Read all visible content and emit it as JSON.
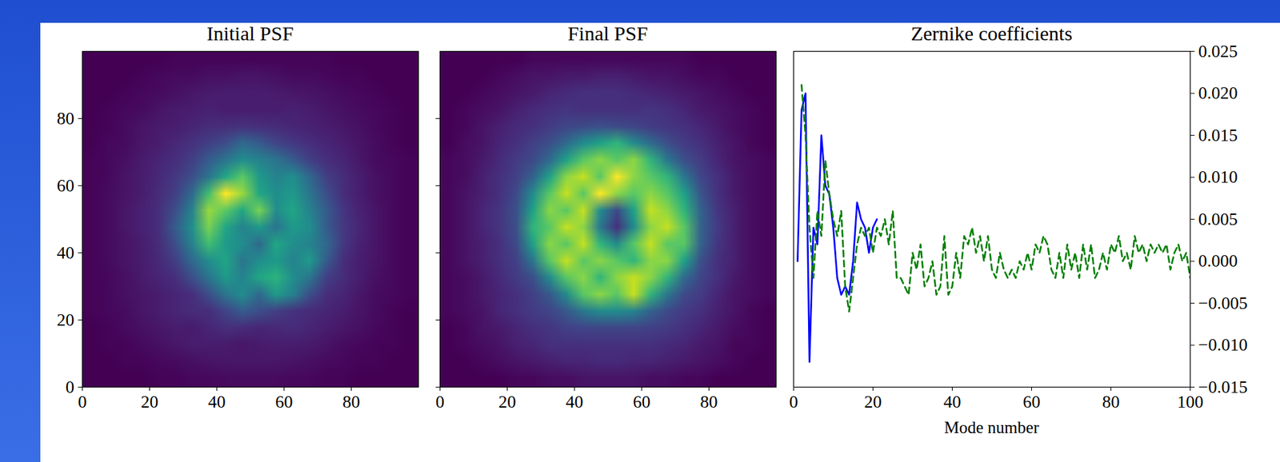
{
  "chart_data": [
    {
      "type": "heatmap",
      "title": "Initial PSF",
      "color": "viridis",
      "xlim": [
        0,
        100
      ],
      "ylim": [
        0,
        100
      ],
      "xticks": [
        0,
        20,
        40,
        60,
        80
      ],
      "yticks": [
        0,
        20,
        40,
        60,
        80
      ],
      "cells": [
        [
          0.02,
          0.02,
          0.02,
          0.02,
          0.03,
          0.03,
          0.04,
          0.04,
          0.05,
          0.05,
          0.05,
          0.05,
          0.04,
          0.04,
          0.03,
          0.03,
          0.02,
          0.02,
          0.02,
          0.02
        ],
        [
          0.02,
          0.02,
          0.03,
          0.03,
          0.04,
          0.05,
          0.06,
          0.07,
          0.08,
          0.08,
          0.08,
          0.08,
          0.07,
          0.06,
          0.05,
          0.04,
          0.03,
          0.03,
          0.02,
          0.02
        ],
        [
          0.02,
          0.03,
          0.03,
          0.05,
          0.06,
          0.08,
          0.1,
          0.1,
          0.09,
          0.08,
          0.09,
          0.1,
          0.1,
          0.09,
          0.07,
          0.05,
          0.04,
          0.03,
          0.03,
          0.02
        ],
        [
          0.02,
          0.03,
          0.05,
          0.06,
          0.08,
          0.1,
          0.09,
          0.12,
          0.15,
          0.14,
          0.12,
          0.13,
          0.14,
          0.12,
          0.1,
          0.08,
          0.06,
          0.04,
          0.03,
          0.02
        ],
        [
          0.03,
          0.04,
          0.05,
          0.08,
          0.1,
          0.12,
          0.14,
          0.15,
          0.22,
          0.3,
          0.25,
          0.2,
          0.16,
          0.14,
          0.12,
          0.1,
          0.07,
          0.05,
          0.03,
          0.02
        ],
        [
          0.03,
          0.04,
          0.06,
          0.08,
          0.1,
          0.12,
          0.15,
          0.25,
          0.4,
          0.5,
          0.35,
          0.55,
          0.45,
          0.25,
          0.15,
          0.12,
          0.08,
          0.05,
          0.04,
          0.03
        ],
        [
          0.03,
          0.04,
          0.06,
          0.09,
          0.12,
          0.15,
          0.25,
          0.4,
          0.55,
          0.45,
          0.6,
          0.65,
          0.5,
          0.4,
          0.2,
          0.14,
          0.1,
          0.06,
          0.04,
          0.03
        ],
        [
          0.03,
          0.05,
          0.07,
          0.1,
          0.13,
          0.2,
          0.35,
          0.5,
          0.6,
          0.4,
          0.5,
          0.55,
          0.45,
          0.55,
          0.3,
          0.15,
          0.1,
          0.07,
          0.04,
          0.03
        ],
        [
          0.03,
          0.05,
          0.07,
          0.1,
          0.14,
          0.25,
          0.45,
          0.7,
          0.55,
          0.5,
          0.35,
          0.6,
          0.5,
          0.45,
          0.35,
          0.18,
          0.11,
          0.07,
          0.04,
          0.03
        ],
        [
          0.03,
          0.05,
          0.08,
          0.11,
          0.15,
          0.3,
          0.5,
          0.8,
          0.6,
          0.45,
          0.55,
          0.4,
          0.55,
          0.5,
          0.3,
          0.18,
          0.12,
          0.07,
          0.04,
          0.03
        ],
        [
          0.03,
          0.05,
          0.08,
          0.11,
          0.15,
          0.25,
          0.45,
          0.85,
          0.75,
          0.6,
          0.8,
          0.5,
          0.6,
          0.45,
          0.3,
          0.17,
          0.11,
          0.07,
          0.04,
          0.03
        ],
        [
          0.03,
          0.05,
          0.07,
          0.1,
          0.14,
          0.2,
          0.35,
          0.7,
          1.0,
          0.85,
          0.6,
          0.5,
          0.55,
          0.4,
          0.25,
          0.15,
          0.1,
          0.06,
          0.04,
          0.03
        ],
        [
          0.03,
          0.04,
          0.07,
          0.1,
          0.13,
          0.18,
          0.25,
          0.4,
          0.6,
          0.75,
          0.55,
          0.45,
          0.5,
          0.35,
          0.2,
          0.14,
          0.1,
          0.06,
          0.04,
          0.03
        ],
        [
          0.03,
          0.04,
          0.06,
          0.09,
          0.12,
          0.15,
          0.2,
          0.3,
          0.4,
          0.5,
          0.45,
          0.4,
          0.3,
          0.2,
          0.15,
          0.12,
          0.08,
          0.05,
          0.04,
          0.03
        ],
        [
          0.02,
          0.04,
          0.05,
          0.08,
          0.1,
          0.13,
          0.16,
          0.2,
          0.25,
          0.35,
          0.3,
          0.22,
          0.18,
          0.15,
          0.12,
          0.1,
          0.07,
          0.05,
          0.03,
          0.02
        ],
        [
          0.02,
          0.03,
          0.05,
          0.07,
          0.09,
          0.1,
          0.12,
          0.14,
          0.15,
          0.16,
          0.15,
          0.14,
          0.12,
          0.11,
          0.1,
          0.08,
          0.06,
          0.04,
          0.03,
          0.02
        ],
        [
          0.02,
          0.03,
          0.04,
          0.05,
          0.07,
          0.09,
          0.1,
          0.11,
          0.1,
          0.1,
          0.1,
          0.1,
          0.11,
          0.1,
          0.08,
          0.06,
          0.05,
          0.04,
          0.03,
          0.02
        ],
        [
          0.02,
          0.02,
          0.03,
          0.04,
          0.05,
          0.06,
          0.08,
          0.09,
          0.1,
          0.1,
          0.1,
          0.09,
          0.08,
          0.07,
          0.06,
          0.05,
          0.04,
          0.03,
          0.02,
          0.02
        ],
        [
          0.02,
          0.02,
          0.02,
          0.03,
          0.04,
          0.05,
          0.05,
          0.06,
          0.06,
          0.07,
          0.07,
          0.06,
          0.05,
          0.05,
          0.04,
          0.03,
          0.03,
          0.02,
          0.02,
          0.02
        ],
        [
          0.02,
          0.02,
          0.02,
          0.02,
          0.02,
          0.03,
          0.03,
          0.03,
          0.03,
          0.03,
          0.03,
          0.03,
          0.03,
          0.03,
          0.03,
          0.02,
          0.02,
          0.02,
          0.02,
          0.02
        ]
      ]
    },
    {
      "type": "heatmap",
      "title": "Final PSF",
      "color": "viridis",
      "tick_labels": "x",
      "xlim": [
        0,
        100
      ],
      "ylim": [
        0,
        100
      ],
      "xticks": [
        0,
        20,
        40,
        60,
        80
      ],
      "yticks": [
        0,
        20,
        40,
        60,
        80
      ],
      "cells": [
        [
          0.02,
          0.02,
          0.02,
          0.02,
          0.03,
          0.03,
          0.04,
          0.04,
          0.05,
          0.05,
          0.05,
          0.05,
          0.04,
          0.04,
          0.03,
          0.03,
          0.02,
          0.02,
          0.02,
          0.02
        ],
        [
          0.02,
          0.02,
          0.03,
          0.04,
          0.05,
          0.06,
          0.07,
          0.08,
          0.08,
          0.09,
          0.09,
          0.08,
          0.08,
          0.07,
          0.06,
          0.05,
          0.04,
          0.03,
          0.02,
          0.02
        ],
        [
          0.02,
          0.03,
          0.04,
          0.05,
          0.07,
          0.08,
          0.1,
          0.1,
          0.1,
          0.1,
          0.1,
          0.1,
          0.1,
          0.09,
          0.08,
          0.06,
          0.05,
          0.03,
          0.03,
          0.02
        ],
        [
          0.02,
          0.03,
          0.05,
          0.06,
          0.08,
          0.1,
          0.11,
          0.13,
          0.14,
          0.14,
          0.14,
          0.14,
          0.13,
          0.12,
          0.1,
          0.08,
          0.06,
          0.04,
          0.03,
          0.02
        ],
        [
          0.03,
          0.04,
          0.05,
          0.08,
          0.1,
          0.12,
          0.14,
          0.18,
          0.25,
          0.3,
          0.3,
          0.28,
          0.2,
          0.15,
          0.12,
          0.1,
          0.07,
          0.05,
          0.03,
          0.02
        ],
        [
          0.03,
          0.04,
          0.06,
          0.08,
          0.1,
          0.13,
          0.18,
          0.3,
          0.45,
          0.5,
          0.45,
          0.55,
          0.4,
          0.25,
          0.15,
          0.12,
          0.08,
          0.05,
          0.04,
          0.03
        ],
        [
          0.03,
          0.04,
          0.06,
          0.09,
          0.12,
          0.16,
          0.3,
          0.45,
          0.5,
          0.4,
          0.5,
          0.55,
          0.5,
          0.4,
          0.22,
          0.14,
          0.1,
          0.06,
          0.04,
          0.03
        ],
        [
          0.03,
          0.05,
          0.07,
          0.1,
          0.13,
          0.25,
          0.45,
          0.55,
          0.45,
          0.5,
          0.45,
          0.4,
          0.5,
          0.5,
          0.35,
          0.16,
          0.1,
          0.07,
          0.04,
          0.03
        ],
        [
          0.03,
          0.05,
          0.07,
          0.1,
          0.15,
          0.35,
          0.5,
          0.45,
          0.55,
          0.4,
          0.3,
          0.45,
          0.55,
          0.45,
          0.45,
          0.2,
          0.11,
          0.07,
          0.04,
          0.03
        ],
        [
          0.03,
          0.05,
          0.08,
          0.11,
          0.16,
          0.4,
          0.45,
          0.55,
          0.5,
          0.25,
          0.1,
          0.3,
          0.5,
          0.55,
          0.45,
          0.2,
          0.12,
          0.07,
          0.04,
          0.03
        ],
        [
          0.03,
          0.05,
          0.08,
          0.11,
          0.16,
          0.35,
          0.5,
          0.45,
          0.55,
          0.3,
          0.15,
          0.35,
          0.55,
          0.5,
          0.4,
          0.2,
          0.11,
          0.07,
          0.04,
          0.03
        ],
        [
          0.03,
          0.05,
          0.07,
          0.1,
          0.15,
          0.3,
          0.45,
          0.55,
          0.45,
          0.6,
          0.5,
          0.45,
          0.5,
          0.45,
          0.35,
          0.17,
          0.1,
          0.06,
          0.04,
          0.03
        ],
        [
          0.03,
          0.04,
          0.07,
          0.1,
          0.13,
          0.2,
          0.35,
          0.5,
          0.55,
          0.45,
          0.6,
          0.5,
          0.45,
          0.4,
          0.25,
          0.14,
          0.1,
          0.06,
          0.04,
          0.03
        ],
        [
          0.03,
          0.04,
          0.06,
          0.09,
          0.12,
          0.15,
          0.22,
          0.35,
          0.45,
          0.5,
          0.45,
          0.5,
          0.4,
          0.25,
          0.16,
          0.12,
          0.08,
          0.05,
          0.04,
          0.03
        ],
        [
          0.02,
          0.04,
          0.05,
          0.08,
          0.1,
          0.13,
          0.16,
          0.22,
          0.3,
          0.35,
          0.4,
          0.3,
          0.22,
          0.16,
          0.12,
          0.1,
          0.07,
          0.05,
          0.03,
          0.02
        ],
        [
          0.02,
          0.03,
          0.05,
          0.07,
          0.09,
          0.1,
          0.12,
          0.14,
          0.15,
          0.16,
          0.15,
          0.14,
          0.12,
          0.11,
          0.1,
          0.08,
          0.06,
          0.04,
          0.03,
          0.02
        ],
        [
          0.02,
          0.03,
          0.04,
          0.05,
          0.07,
          0.09,
          0.1,
          0.11,
          0.1,
          0.1,
          0.1,
          0.1,
          0.11,
          0.1,
          0.08,
          0.06,
          0.05,
          0.04,
          0.03,
          0.02
        ],
        [
          0.02,
          0.02,
          0.03,
          0.04,
          0.05,
          0.06,
          0.08,
          0.09,
          0.1,
          0.1,
          0.1,
          0.09,
          0.08,
          0.07,
          0.06,
          0.05,
          0.04,
          0.03,
          0.02,
          0.02
        ],
        [
          0.02,
          0.02,
          0.02,
          0.03,
          0.04,
          0.05,
          0.05,
          0.06,
          0.06,
          0.07,
          0.07,
          0.06,
          0.05,
          0.05,
          0.04,
          0.03,
          0.03,
          0.02,
          0.02,
          0.02
        ],
        [
          0.02,
          0.02,
          0.02,
          0.02,
          0.02,
          0.03,
          0.03,
          0.03,
          0.03,
          0.03,
          0.03,
          0.03,
          0.03,
          0.03,
          0.03,
          0.02,
          0.02,
          0.02,
          0.02,
          0.02
        ]
      ]
    },
    {
      "type": "line",
      "title": "Zernike coefficients",
      "x_label": "Mode number",
      "xlim": [
        0,
        100
      ],
      "xticks": [
        0,
        20,
        40,
        60,
        80,
        100
      ],
      "ylim": [
        -0.015,
        0.025
      ],
      "yticks": [
        {
          "value": -0.015,
          "label": "−0.015"
        },
        {
          "value": -0.01,
          "label": "−0.010"
        },
        {
          "value": -0.005,
          "label": "−0.005"
        },
        {
          "value": 0,
          "label": "0.000"
        },
        {
          "value": 0.005,
          "label": "0.005"
        },
        {
          "value": 0.01,
          "label": "0.010"
        },
        {
          "value": 0.015,
          "label": "0.015"
        },
        {
          "value": 0.02,
          "label": "0.020"
        },
        {
          "value": 0.025,
          "label": "0.025"
        }
      ],
      "series": [
        {
          "color": "#0000ff",
          "line_style": "solid",
          "x": [
            1,
            2,
            3,
            4,
            5,
            6,
            7,
            8,
            9,
            10,
            11,
            12,
            13,
            14,
            15,
            16,
            17,
            18,
            19,
            20,
            21
          ],
          "values": [
            0.0,
            0.018,
            0.02,
            -0.012,
            0.004,
            0.002,
            0.015,
            0.009,
            0.008,
            0.004,
            -0.002,
            -0.004,
            -0.003,
            -0.004,
            0.0,
            0.007,
            0.005,
            0.004,
            0.001,
            0.004,
            0.005
          ]
        },
        {
          "color": "#007f00",
          "line_style": "dashed",
          "x": [
            2,
            3,
            4,
            5,
            6,
            7,
            8,
            9,
            10,
            11,
            12,
            13,
            14,
            15,
            16,
            17,
            18,
            19,
            20,
            21,
            22,
            23,
            24,
            25,
            26,
            27,
            28,
            29,
            30,
            31,
            32,
            33,
            34,
            35,
            36,
            37,
            38,
            39,
            40,
            41,
            42,
            43,
            44,
            45,
            46,
            47,
            48,
            49,
            50,
            51,
            52,
            53,
            54,
            55,
            56,
            57,
            58,
            59,
            60,
            61,
            62,
            63,
            64,
            65,
            66,
            67,
            68,
            69,
            70,
            71,
            72,
            73,
            74,
            75,
            76,
            77,
            78,
            79,
            80,
            81,
            82,
            83,
            84,
            85,
            86,
            87,
            88,
            89,
            90,
            91,
            92,
            93,
            94,
            95,
            96,
            97,
            98,
            99,
            100
          ],
          "values": [
            0.021,
            0.015,
            0.004,
            -0.002,
            0.006,
            0.003,
            0.012,
            0.008,
            0.005,
            0.003,
            0.006,
            -0.003,
            -0.006,
            -0.002,
            0.002,
            0.004,
            0.003,
            0.004,
            0.001,
            0.004,
            0.003,
            0.005,
            0.002,
            0.006,
            -0.002,
            -0.002,
            -0.003,
            -0.004,
            0.001,
            -0.001,
            0.002,
            -0.003,
            -0.002,
            0.0,
            -0.004,
            -0.003,
            0.003,
            -0.004,
            -0.003,
            0.001,
            -0.002,
            0.003,
            0.002,
            0.004,
            0.001,
            0.003,
            0.0,
            0.003,
            -0.001,
            -0.002,
            0.001,
            -0.001,
            -0.002,
            -0.001,
            -0.002,
            0.0,
            -0.001,
            0.001,
            -0.001,
            0.002,
            0.001,
            0.003,
            0.002,
            -0.001,
            -0.002,
            0.001,
            -0.002,
            0.002,
            -0.001,
            0.001,
            -0.002,
            0.002,
            -0.001,
            0.002,
            -0.002,
            -0.001,
            0.001,
            -0.001,
            0.002,
            0.001,
            0.003,
            0.0,
            0.001,
            -0.001,
            0.003,
            0.001,
            0.002,
            0.0,
            0.002,
            0.001,
            0.002,
            0.001,
            0.002,
            -0.001,
            0.001,
            0.002,
            0.0,
            0.001,
            -0.002
          ]
        }
      ]
    }
  ]
}
